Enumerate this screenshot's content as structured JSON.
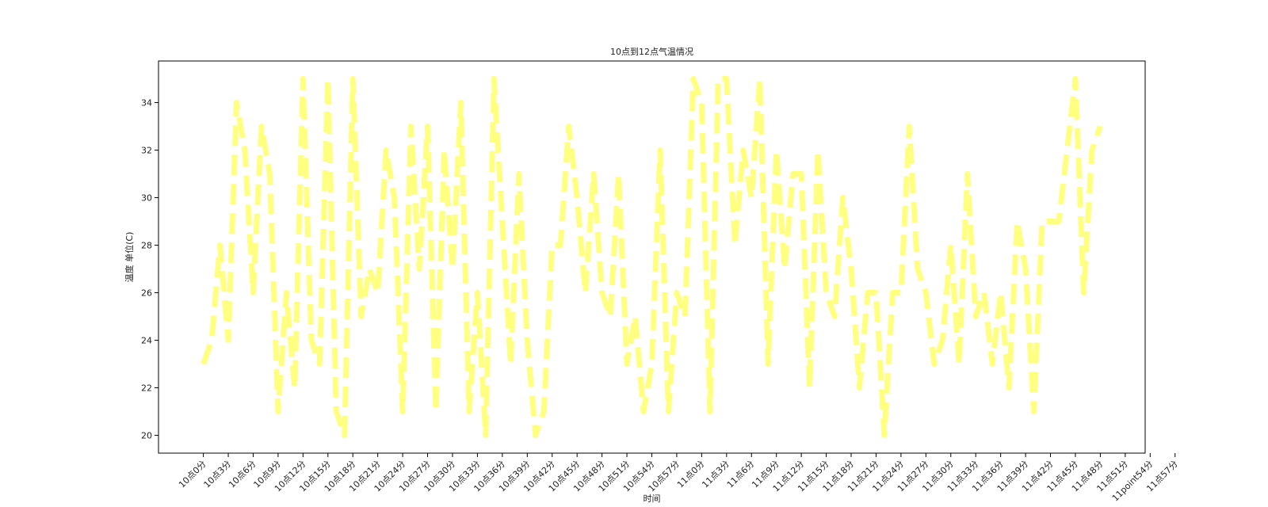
{
  "chart_data": {
    "type": "line",
    "title": "10点到12点气温情况",
    "xlabel": "时间",
    "ylabel": "温度 单位(C)",
    "ylim": [
      19.25,
      35.75
    ],
    "yticks": [
      20,
      22,
      24,
      26,
      28,
      30,
      32,
      34
    ],
    "x_tick_labels": [
      "10点0分",
      "10点3分",
      "10点6分",
      "10点9分",
      "10点12分",
      "10点15分",
      "10点18分",
      "10点21分",
      "10点24分",
      "10点27分",
      "10点30分",
      "10点33分",
      "10点36分",
      "10点39分",
      "10点42分",
      "10点45分",
      "10点48分",
      "10点51分",
      "10点54分",
      "10点57分",
      "11点0分",
      "11点3分",
      "11点6分",
      "11点9分",
      "11点12分",
      "11点15分",
      "11点18分",
      "11点21分",
      "11点24分",
      "11点27分",
      "11点30分",
      "11点33分",
      "11点36分",
      "11点39分",
      "11点42分",
      "11点45分",
      "11点48分",
      "11点51分",
      "11point54分",
      "11点57分"
    ],
    "grid": false,
    "line_style": "dashed",
    "line_color": "#ffff80",
    "series": [
      {
        "values": [
          23,
          24,
          28,
          24,
          34,
          32,
          26,
          33,
          31,
          21,
          26,
          22,
          35,
          24,
          23,
          35,
          21,
          20,
          35,
          25,
          27,
          26,
          32,
          30,
          21,
          33,
          27,
          33,
          21,
          32,
          27,
          34,
          21,
          26,
          20,
          35,
          29,
          23,
          31,
          24,
          20,
          21,
          28,
          28,
          33,
          30,
          26,
          31,
          26,
          25,
          31,
          23,
          25,
          21,
          23,
          32,
          21,
          26,
          25,
          35,
          34,
          21,
          35,
          35,
          28,
          32,
          30,
          35,
          23,
          32,
          27,
          31,
          31,
          22,
          32,
          26,
          25,
          30,
          27,
          22,
          26,
          26,
          20,
          26,
          26,
          33,
          27,
          26,
          23,
          24,
          28,
          23,
          31,
          25,
          26,
          23,
          26,
          22,
          29,
          27,
          21,
          29,
          29,
          29,
          32,
          35,
          26,
          32,
          33
        ]
      }
    ]
  }
}
